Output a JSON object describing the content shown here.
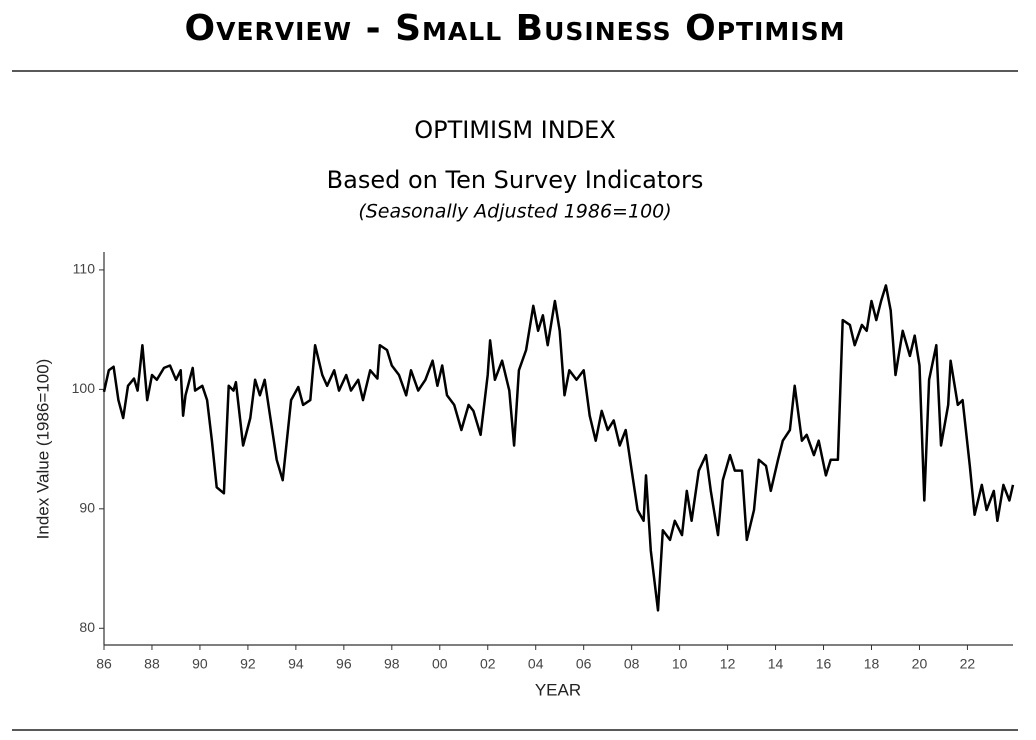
{
  "header": {
    "title": "Overview - Small Business Optimism"
  },
  "chart_data": {
    "type": "line",
    "title": "OPTIMISM INDEX",
    "subtitle": "Based on Ten Survey Indicators",
    "note": "(Seasonally Adjusted 1986=100)",
    "x_label": "YEAR",
    "y_label": "Index Value (1986=100)",
    "color": "#000000",
    "x": [
      1986.0,
      1986.2,
      1986.4,
      1986.6,
      1986.8,
      1987.0,
      1987.25,
      1987.4,
      1987.6,
      1987.8,
      1988.0,
      1988.2,
      1988.5,
      1988.75,
      1989.0,
      1989.2,
      1989.3,
      1989.4,
      1989.7,
      1989.8,
      1990.1,
      1990.3,
      1990.5,
      1990.7,
      1991.0,
      1991.2,
      1991.4,
      1991.5,
      1991.8,
      1992.1,
      1992.3,
      1992.5,
      1992.7,
      1992.9,
      1993.2,
      1993.45,
      1993.8,
      1994.1,
      1994.3,
      1994.6,
      1994.8,
      1995.1,
      1995.3,
      1995.6,
      1995.8,
      1996.1,
      1996.3,
      1996.6,
      1996.8,
      1997.1,
      1997.4,
      1997.5,
      1997.8,
      1998.0,
      1998.3,
      1998.6,
      1998.8,
      1999.1,
      1999.4,
      1999.7,
      1999.9,
      2000.1,
      2000.3,
      2000.6,
      2000.9,
      2001.2,
      2001.4,
      2001.7,
      2002.0,
      2002.1,
      2002.3,
      2002.6,
      2002.9,
      2003.1,
      2003.3,
      2003.6,
      2003.9,
      2004.1,
      2004.3,
      2004.5,
      2004.8,
      2005.0,
      2005.2,
      2005.4,
      2005.7,
      2006.0,
      2006.25,
      2006.5,
      2006.75,
      2007.0,
      2007.25,
      2007.5,
      2007.75,
      2008.0,
      2008.25,
      2008.5,
      2008.6,
      2008.8,
      2009.1,
      2009.3,
      2009.6,
      2009.8,
      2010.1,
      2010.3,
      2010.5,
      2010.8,
      2011.1,
      2011.3,
      2011.6,
      2011.8,
      2012.1,
      2012.3,
      2012.6,
      2012.8,
      2013.1,
      2013.3,
      2013.6,
      2013.8,
      2014.1,
      2014.3,
      2014.6,
      2014.8,
      2015.1,
      2015.3,
      2015.6,
      2015.8,
      2016.1,
      2016.3,
      2016.6,
      2016.8,
      2017.1,
      2017.3,
      2017.6,
      2017.8,
      2018.0,
      2018.2,
      2018.4,
      2018.6,
      2018.8,
      2019.0,
      2019.3,
      2019.6,
      2019.8,
      2020.0,
      2020.2,
      2020.4,
      2020.7,
      2020.9,
      2021.2,
      2021.3,
      2021.6,
      2021.8,
      2022.1,
      2022.3,
      2022.6,
      2022.8,
      2023.1,
      2023.25,
      2023.5,
      2023.75,
      2023.9
    ],
    "values": [
      99.8,
      101.6,
      101.9,
      99.1,
      97.6,
      100.3,
      100.9,
      99.9,
      103.7,
      99.1,
      101.2,
      100.8,
      101.8,
      102,
      100.8,
      101.6,
      97.8,
      99.5,
      101.8,
      99.9,
      100.3,
      99.1,
      95.7,
      91.8,
      91.3,
      100.3,
      99.9,
      100.6,
      95.3,
      97.6,
      100.8,
      99.5,
      100.8,
      98.1,
      94.1,
      92.4,
      99.1,
      100.2,
      98.7,
      99.1,
      103.7,
      101.2,
      100.3,
      101.6,
      99.9,
      101.2,
      99.9,
      100.8,
      99.1,
      101.6,
      100.9,
      103.7,
      103.3,
      102,
      101.2,
      99.5,
      101.6,
      99.9,
      100.8,
      102.4,
      100.3,
      102,
      99.5,
      98.7,
      96.6,
      98.7,
      98.2,
      96.2,
      101.2,
      104.1,
      100.8,
      102.4,
      99.9,
      95.3,
      101.6,
      103.3,
      107,
      104.9,
      106.2,
      103.7,
      107.4,
      104.9,
      99.5,
      101.6,
      100.8,
      101.6,
      97.8,
      95.7,
      98.2,
      96.6,
      97.4,
      95.3,
      96.6,
      93.2,
      89.9,
      89,
      92.8,
      86.5,
      81.5,
      88.2,
      87.4,
      89,
      87.8,
      91.5,
      89,
      93.2,
      94.5,
      91.5,
      87.8,
      92.4,
      94.5,
      93.2,
      93.2,
      87.4,
      89.9,
      94.1,
      93.6,
      91.5,
      94.1,
      95.7,
      96.6,
      100.3,
      95.7,
      96.2,
      94.5,
      95.7,
      92.8,
      94.1,
      94.1,
      105.8,
      105.4,
      103.7,
      105.4,
      104.9,
      107.4,
      105.8,
      107.4,
      108.7,
      106.6,
      101.2,
      104.9,
      102.8,
      104.5,
      102,
      90.7,
      100.8,
      103.7,
      95.3,
      98.7,
      102.4,
      98.7,
      99.1,
      93.6,
      89.5,
      92,
      89.9,
      91.5,
      89,
      92,
      90.7,
      92
    ],
    "xlim": [
      1986,
      2023.9
    ],
    "ylim": [
      78.6,
      111.5
    ],
    "xticks": [
      {
        "value": 1986,
        "label": "86"
      },
      {
        "value": 1988,
        "label": "88"
      },
      {
        "value": 1990,
        "label": "90"
      },
      {
        "value": 1992,
        "label": "92"
      },
      {
        "value": 1994,
        "label": "94"
      },
      {
        "value": 1996,
        "label": "96"
      },
      {
        "value": 1998,
        "label": "98"
      },
      {
        "value": 2000,
        "label": "00"
      },
      {
        "value": 2002,
        "label": "02"
      },
      {
        "value": 2004,
        "label": "04"
      },
      {
        "value": 2006,
        "label": "06"
      },
      {
        "value": 2008,
        "label": "08"
      },
      {
        "value": 2010,
        "label": "10"
      },
      {
        "value": 2012,
        "label": "12"
      },
      {
        "value": 2014,
        "label": "14"
      },
      {
        "value": 2016,
        "label": "16"
      },
      {
        "value": 2018,
        "label": "18"
      },
      {
        "value": 2020,
        "label": "20"
      },
      {
        "value": 2022,
        "label": "22"
      }
    ],
    "yticks": [
      80,
      90,
      100,
      110
    ],
    "grid": false
  }
}
